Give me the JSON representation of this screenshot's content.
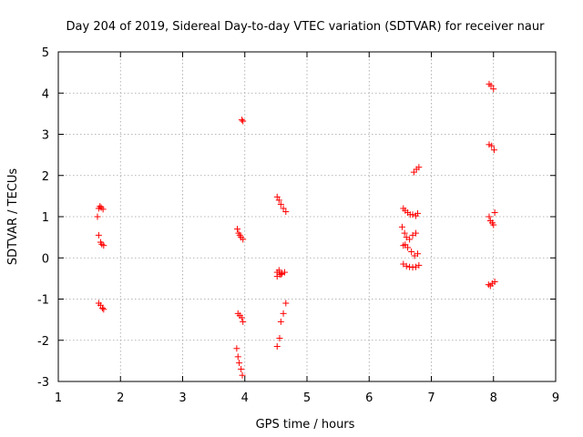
{
  "chart_data": {
    "type": "scatter",
    "title": "Day 204 of 2019, Sidereal Day-to-day VTEC variation (SDTVAR) for receiver naur",
    "xlabel": "GPS time / hours",
    "ylabel": "SDTVAR / TECUs",
    "xlim": [
      1,
      9
    ],
    "ylim": [
      -3,
      5
    ],
    "x_ticks": [
      "1",
      "2",
      "3",
      "4",
      "5",
      "6",
      "7",
      "8",
      "9"
    ],
    "y_ticks": [
      "-3",
      "-2",
      "-1",
      "0",
      "1",
      "2",
      "3",
      "4",
      "5"
    ],
    "grid": true,
    "marker": "plus",
    "color": "#ff0000",
    "series": [
      {
        "name": "SDTVAR",
        "x": [
          1.63,
          1.65,
          1.67,
          1.69,
          1.72,
          1.65,
          1.68,
          1.7,
          1.73,
          1.65,
          1.68,
          1.71,
          1.73,
          3.95,
          3.97,
          3.88,
          3.9,
          3.92,
          3.94,
          3.97,
          3.89,
          3.92,
          3.95,
          3.97,
          3.87,
          3.89,
          3.91,
          3.94,
          3.96,
          4.52,
          4.55,
          4.58,
          4.62,
          4.66,
          4.52,
          4.56,
          4.6,
          4.64,
          4.52,
          4.56,
          4.58,
          4.62,
          4.66,
          4.52,
          4.55,
          4.58,
          6.55,
          6.58,
          6.62,
          6.66,
          6.7,
          6.75,
          6.78,
          6.53,
          6.57,
          6.6,
          6.65,
          6.7,
          6.75,
          6.55,
          6.58,
          6.62,
          6.68,
          6.73,
          6.78,
          6.55,
          6.6,
          6.65,
          6.7,
          6.75,
          6.8,
          6.72,
          6.76,
          6.8,
          7.93,
          7.96,
          8.0,
          7.93,
          7.97,
          8.01,
          7.93,
          7.95,
          7.98,
          8.0,
          8.02,
          7.92,
          7.95,
          7.98,
          8.02
        ],
        "y": [
          1.0,
          1.2,
          1.25,
          1.22,
          1.18,
          0.55,
          0.38,
          0.33,
          0.3,
          -1.1,
          -1.15,
          -1.22,
          -1.25,
          3.35,
          3.32,
          0.7,
          0.6,
          0.55,
          0.5,
          0.45,
          -1.35,
          -1.4,
          -1.45,
          -1.55,
          -2.2,
          -2.4,
          -2.55,
          -2.7,
          -2.85,
          1.48,
          1.4,
          1.3,
          1.2,
          1.12,
          -0.35,
          -0.4,
          -0.38,
          -0.35,
          -2.15,
          -1.95,
          -1.55,
          -1.35,
          -1.1,
          -0.45,
          -0.3,
          -0.4,
          1.2,
          1.15,
          1.1,
          1.05,
          1.05,
          1.02,
          1.08,
          0.75,
          0.6,
          0.5,
          0.45,
          0.55,
          0.6,
          0.3,
          0.32,
          0.25,
          0.15,
          0.05,
          0.1,
          -0.15,
          -0.2,
          -0.22,
          -0.23,
          -0.22,
          -0.18,
          2.08,
          2.15,
          2.2,
          4.22,
          4.18,
          4.1,
          2.75,
          2.72,
          2.62,
          1.0,
          0.9,
          0.85,
          0.8,
          1.1,
          -0.65,
          -0.68,
          -0.62,
          -0.58
        ]
      }
    ]
  }
}
